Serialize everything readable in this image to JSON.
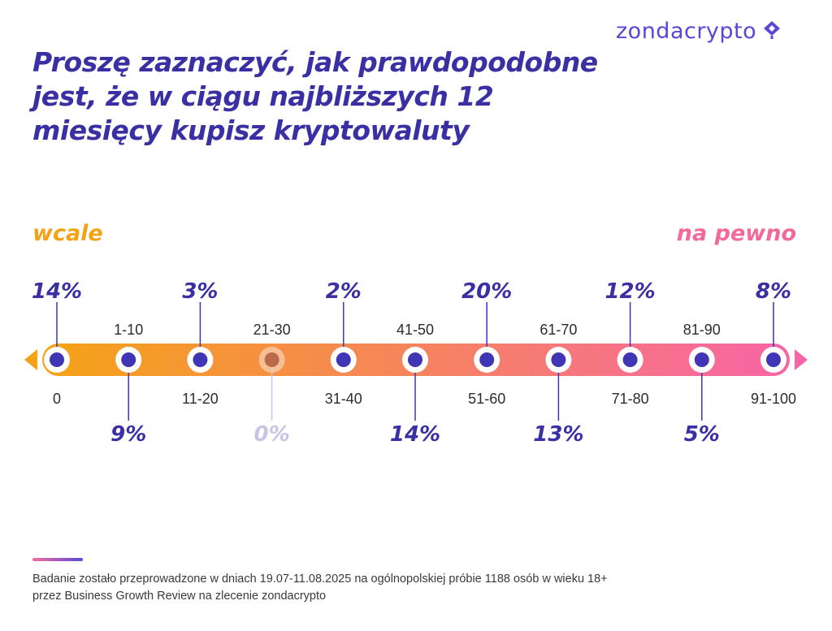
{
  "logo": {
    "text": "zondacrypto",
    "icon": "zondacrypto-mark-icon"
  },
  "title": "Proszę zaznaczyć, jak prawdopodobne jest, że w ciągu najbliższych 12 miesięcy kupisz kryptowaluty",
  "scale_labels": {
    "left": "wcale",
    "right": "na pewno"
  },
  "colors": {
    "accent": "#3b30a3",
    "dot": "#3f35b5",
    "zero_value": "#c9c4e6",
    "zero_dot": "#b86a4a",
    "gradient_start": "#f5a316",
    "gradient_end": "#f765a6"
  },
  "chart_data": {
    "type": "table",
    "categories": [
      "0",
      "1-10",
      "11-20",
      "21-30",
      "31-40",
      "41-50",
      "51-60",
      "61-70",
      "71-80",
      "81-90",
      "91-100"
    ],
    "values": [
      14,
      9,
      3,
      0,
      2,
      14,
      20,
      13,
      12,
      5,
      8
    ],
    "value_labels": [
      "14%",
      "9%",
      "3%",
      "0%",
      "2%",
      "14%",
      "20%",
      "13%",
      "12%",
      "5%",
      "8%"
    ]
  },
  "footer": {
    "line1": "Badanie zostało przeprowadzone w dniach 19.07-11.08.2025 na ogólnopolskiej próbie 1188 osób w wieku 18+",
    "line2": "przez Business Growth Review na zlecenie zondacrypto"
  }
}
